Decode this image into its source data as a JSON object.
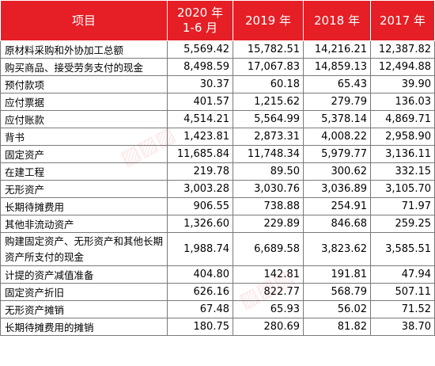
{
  "table": {
    "headers": [
      "项目",
      "2020 年\n1-6 月",
      "2019 年",
      "2018 年",
      "2017 年"
    ],
    "rows": [
      [
        "原材料采购和外协加工总额",
        "5,569.42",
        "15,782.51",
        "14,216.21",
        "12,387.82"
      ],
      [
        "购买商品、接受劳务支付的现金",
        "8,498.59",
        "17,067.83",
        "14,859.13",
        "12,494.88"
      ],
      [
        "预付款项",
        "30.37",
        "60.18",
        "65.43",
        "39.90"
      ],
      [
        "应付票据",
        "401.57",
        "1,215.62",
        "279.79",
        "136.03"
      ],
      [
        "应付账款",
        "4,514.21",
        "5,564.99",
        "5,378.14",
        "4,869.71"
      ],
      [
        "背书",
        "1,423.81",
        "2,873.31",
        "4,008.22",
        "2,958.90"
      ],
      [
        "固定资产",
        "11,685.84",
        "11,748.34",
        "5,979.77",
        "3,136.11"
      ],
      [
        "在建工程",
        "219.78",
        "89.50",
        "300.62",
        "332.15"
      ],
      [
        "无形资产",
        "3,003.28",
        "3,030.76",
        "3,036.89",
        "3,105.70"
      ],
      [
        "长期待摊费用",
        "906.55",
        "738.88",
        "254.91",
        "71.97"
      ],
      [
        "其他非流动资产",
        "1,326.60",
        "229.89",
        "846.68",
        "259.25"
      ],
      [
        "购建固定资产、无形资产和其他长期资产所支付的现金",
        "1,988.74",
        "6,689.58",
        "3,823.62",
        "3,585.51"
      ],
      [
        "计提的资产减值准备",
        "404.80",
        "142.81",
        "191.81",
        "47.94"
      ],
      [
        "固定资产折旧",
        "626.16",
        "822.77",
        "568.79",
        "507.11"
      ],
      [
        "无形资产摊销",
        "67.48",
        "65.93",
        "56.02",
        "71.52"
      ],
      [
        "长期待摊费用的摊销",
        "180.75",
        "280.69",
        "81.82",
        "38.70"
      ]
    ]
  },
  "colors": {
    "header_bg": "#e61e25",
    "header_text": "#ffffff",
    "border": "#7a7a7a"
  }
}
